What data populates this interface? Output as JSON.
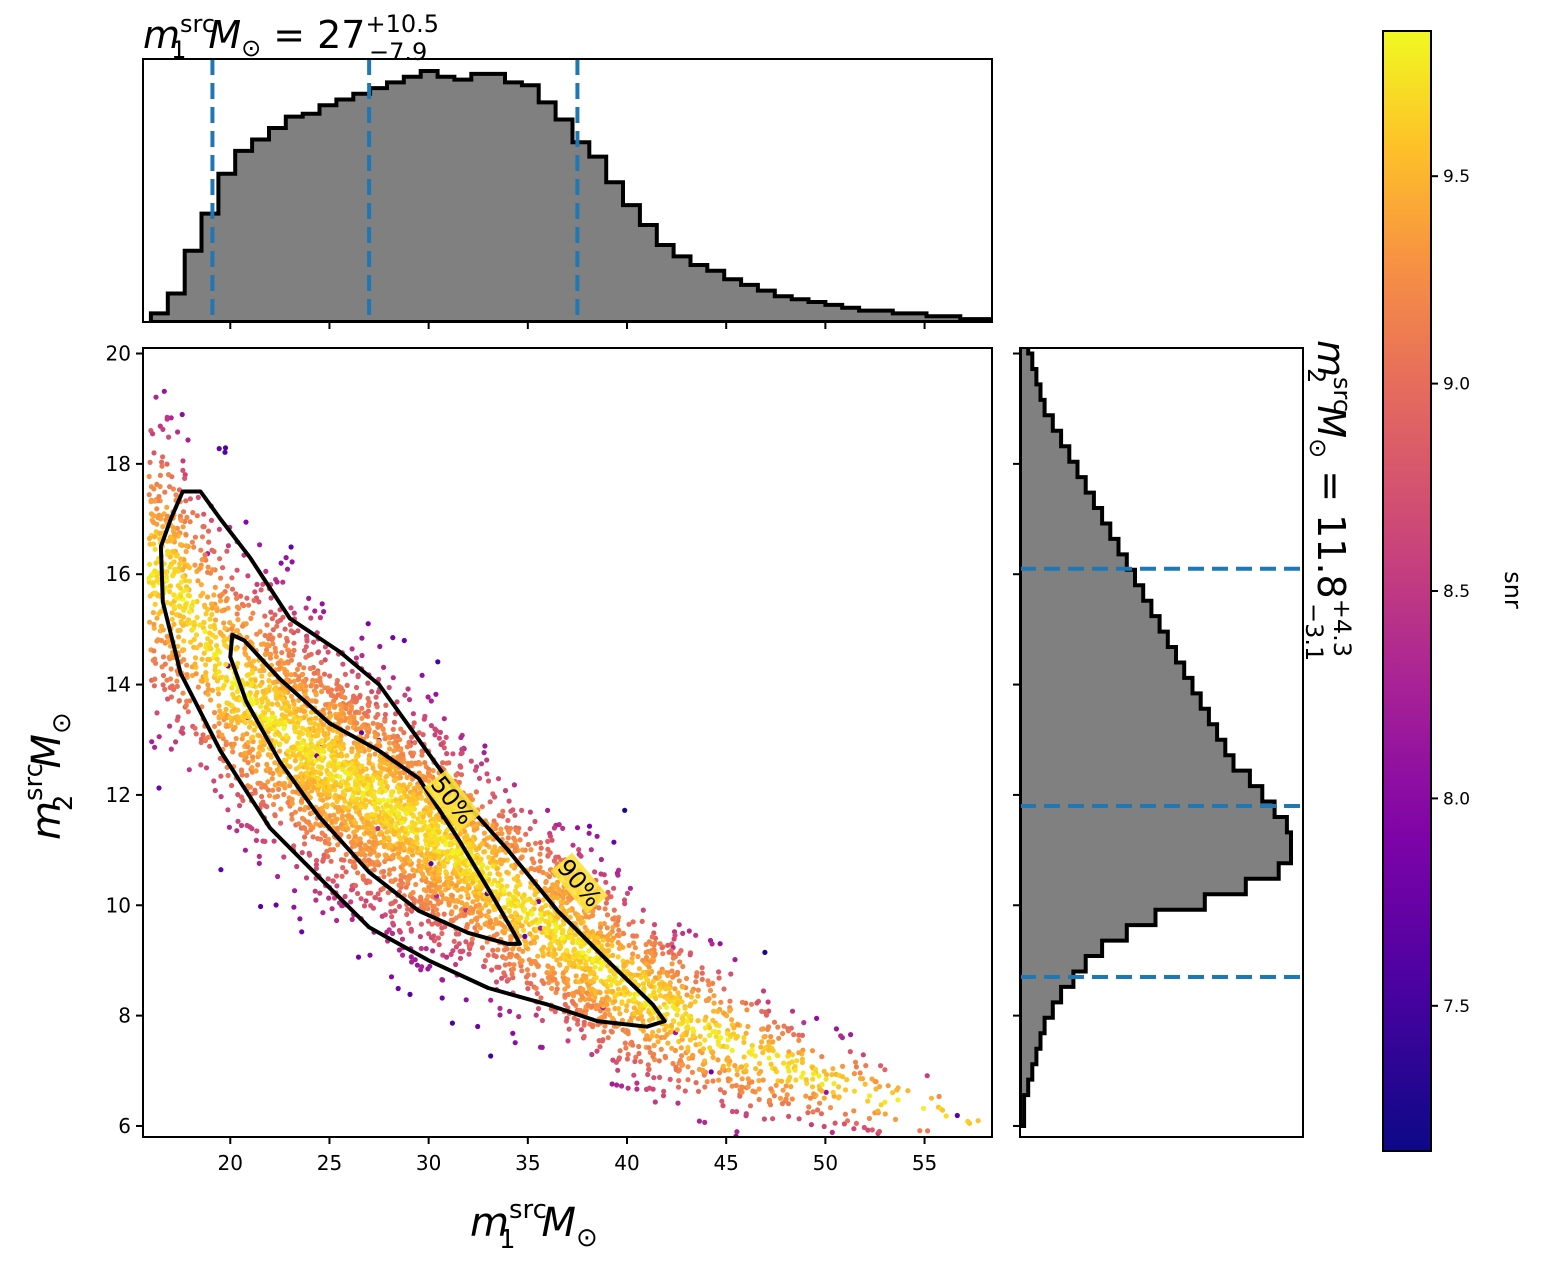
{
  "chart_data": {
    "type": "scatter",
    "description_kind": "corner plot: 2D scatter colored by snr with 50%/90% contours and marginal histograms",
    "main": {
      "xlabel": {
        "var": "m",
        "sub": "1",
        "sup": "src",
        "unit": "M",
        "unit_sub": "⊙"
      },
      "ylabel": {
        "var": "m",
        "sub": "2",
        "sup": "src",
        "unit": "M",
        "unit_sub": "⊙"
      },
      "xlim": [
        15.6,
        58.4
      ],
      "ylim": [
        5.8,
        20.1
      ],
      "xticks": [
        20,
        25,
        30,
        35,
        40,
        45,
        50,
        55
      ],
      "yticks": [
        6,
        8,
        10,
        12,
        14,
        16,
        18,
        20
      ],
      "color_variable": "snr",
      "contours": [
        {
          "label": "50%",
          "points": [
            [
              20.1,
              14.9
            ],
            [
              20.7,
              14.8
            ],
            [
              22.5,
              14.1
            ],
            [
              25.0,
              13.3
            ],
            [
              27.5,
              12.8
            ],
            [
              29.5,
              12.3
            ],
            [
              31.5,
              11.2
            ],
            [
              33.0,
              10.3
            ],
            [
              34.3,
              9.5
            ],
            [
              34.6,
              9.3
            ],
            [
              34.0,
              9.3
            ],
            [
              32.0,
              9.5
            ],
            [
              29.5,
              9.9
            ],
            [
              27.0,
              10.6
            ],
            [
              24.5,
              11.6
            ],
            [
              22.5,
              12.6
            ],
            [
              20.8,
              13.7
            ],
            [
              20.0,
              14.5
            ]
          ]
        },
        {
          "label": "90%",
          "points": [
            [
              17.0,
              17.0
            ],
            [
              17.6,
              17.5
            ],
            [
              18.5,
              17.5
            ],
            [
              19.5,
              17.0
            ],
            [
              21.0,
              16.3
            ],
            [
              23.0,
              15.2
            ],
            [
              25.5,
              14.6
            ],
            [
              27.5,
              14.0
            ],
            [
              29.5,
              13.0
            ],
            [
              31.5,
              12.0
            ],
            [
              34.0,
              11.0
            ],
            [
              36.5,
              9.9
            ],
            [
              39.0,
              9.0
            ],
            [
              41.3,
              8.2
            ],
            [
              41.9,
              7.9
            ],
            [
              41.0,
              7.8
            ],
            [
              38.5,
              7.9
            ],
            [
              36.0,
              8.2
            ],
            [
              33.0,
              8.5
            ],
            [
              30.0,
              9.0
            ],
            [
              27.0,
              9.6
            ],
            [
              24.5,
              10.5
            ],
            [
              22.0,
              11.4
            ],
            [
              19.5,
              12.8
            ],
            [
              17.5,
              14.2
            ],
            [
              16.6,
              15.5
            ],
            [
              16.5,
              16.5
            ]
          ]
        }
      ],
      "ridge": [
        [
          15.8,
          16.1
        ],
        [
          17,
          15.9
        ],
        [
          18,
          15.3
        ],
        [
          20,
          14.1
        ],
        [
          22,
          13.4
        ],
        [
          25,
          12.5
        ],
        [
          28,
          11.8
        ],
        [
          30,
          11.3
        ],
        [
          32,
          10.8
        ],
        [
          35,
          9.9
        ],
        [
          38,
          9.1
        ],
        [
          41,
          8.3
        ],
        [
          44,
          7.7
        ],
        [
          47,
          7.2
        ],
        [
          50,
          6.8
        ],
        [
          53,
          6.5
        ],
        [
          56,
          6.2
        ],
        [
          58.4,
          6.0
        ]
      ],
      "ridge_width": [
        1.3,
        1.3,
        1.25,
        1.2,
        1.15,
        1.1,
        1.05,
        1.0,
        0.95,
        0.9,
        0.85,
        0.8,
        0.7,
        0.55,
        0.4,
        0.35,
        0.3,
        0.25
      ]
    },
    "top_histogram": {
      "title": {
        "var": "m",
        "sub": "1",
        "sup": "src",
        "unit": "M",
        "unit_sub": "⊙",
        "value": "27",
        "plus": "+10.5",
        "minus": "−7.9"
      },
      "xlim": [
        15.6,
        58.4
      ],
      "bin_width": 0.85,
      "bin_start": 16.0,
      "counts": [
        3,
        10,
        25,
        38,
        52,
        60,
        64,
        68,
        72,
        73,
        76,
        78,
        80,
        82,
        84,
        86,
        88,
        86,
        85,
        87,
        87,
        84,
        83,
        77,
        71,
        63,
        58,
        49,
        41,
        34,
        27,
        23,
        20,
        18,
        15,
        13,
        11,
        9,
        8,
        7,
        6,
        5,
        4,
        4,
        3,
        3,
        2,
        2,
        1,
        1
      ],
      "lines": [
        19.1,
        27.0,
        37.5
      ]
    },
    "right_histogram": {
      "title": {
        "var": "m",
        "sub": "2",
        "sup": "src",
        "unit": "M",
        "unit_sub": "⊙",
        "value": "11.8",
        "plus": "+4.3",
        "minus": "−3.1"
      },
      "ylim": [
        5.8,
        20.1
      ],
      "bin_width": 0.28,
      "bin_start": 6.0,
      "counts": [
        1,
        1,
        2,
        3,
        4,
        5,
        6,
        8,
        10,
        13,
        16,
        20,
        26,
        33,
        45,
        55,
        63,
        66,
        66,
        65,
        62,
        59,
        56,
        52,
        50,
        48,
        46,
        44,
        42,
        40,
        38,
        36,
        34,
        32,
        30,
        28,
        26,
        24,
        22,
        20,
        18,
        16,
        14,
        12,
        10,
        8,
        6,
        5,
        4,
        3,
        2,
        2,
        1,
        1,
        0,
        0
      ],
      "lines": [
        8.7,
        11.8,
        16.1
      ]
    },
    "colorbar": {
      "label": "snr",
      "range": [
        7.15,
        9.85
      ],
      "ticks": [
        "7.5",
        "8.0",
        "8.5",
        "9.0",
        "9.5"
      ]
    }
  },
  "colors": {
    "hist_fill": "#808080",
    "hist_edge": "#000000",
    "quantile_line": "#1f77b4",
    "contour": "#000000"
  },
  "colormap": "plasma"
}
